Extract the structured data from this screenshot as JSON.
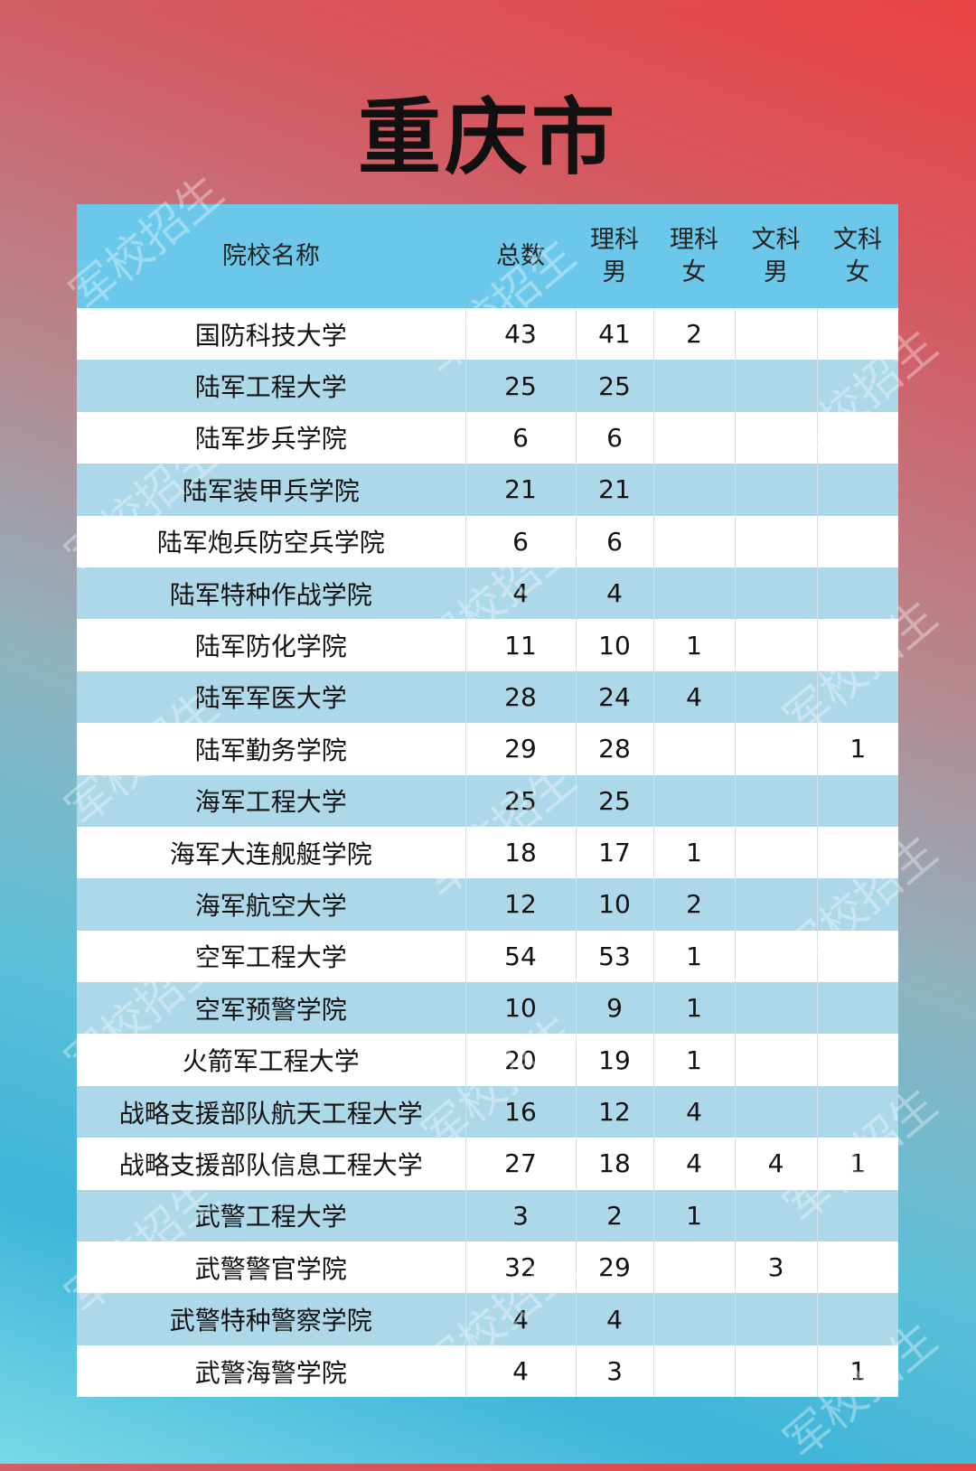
{
  "title": "重庆市",
  "watermark": "军校招生",
  "headers": [
    "院校名称",
    "总数",
    "理科男",
    "理科女",
    "文科男",
    "文科女"
  ],
  "rows": [
    [
      "国防科技大学",
      "43",
      "41",
      "2",
      "",
      ""
    ],
    [
      "陆军工程大学",
      "25",
      "25",
      "",
      "",
      ""
    ],
    [
      "陆军步兵学院",
      "6",
      "6",
      "",
      "",
      ""
    ],
    [
      "陆军装甲兵学院",
      "21",
      "21",
      "",
      "",
      ""
    ],
    [
      "陆军炮兵防空兵学院",
      "6",
      "6",
      "",
      "",
      ""
    ],
    [
      "陆军特种作战学院",
      "4",
      "4",
      "",
      "",
      ""
    ],
    [
      "陆军防化学院",
      "11",
      "10",
      "1",
      "",
      ""
    ],
    [
      "陆军军医大学",
      "28",
      "24",
      "4",
      "",
      ""
    ],
    [
      "陆军勤务学院",
      "29",
      "28",
      "",
      "",
      "1"
    ],
    [
      "海军工程大学",
      "25",
      "25",
      "",
      "",
      ""
    ],
    [
      "海军大连舰艇学院",
      "18",
      "17",
      "1",
      "",
      ""
    ],
    [
      "海军航空大学",
      "12",
      "10",
      "2",
      "",
      ""
    ],
    [
      "空军工程大学",
      "54",
      "53",
      "1",
      "",
      ""
    ],
    [
      "空军预警学院",
      "10",
      "9",
      "1",
      "",
      ""
    ],
    [
      "火箭军工程大学",
      "20",
      "19",
      "1",
      "",
      ""
    ],
    [
      "战略支援部队航天工程大学",
      "16",
      "12",
      "4",
      "",
      ""
    ],
    [
      "战略支援部队信息工程大学",
      "27",
      "18",
      "4",
      "4",
      "1"
    ],
    [
      "武警工程大学",
      "3",
      "2",
      "1",
      "",
      ""
    ],
    [
      "武警警官学院",
      "32",
      "29",
      "",
      "3",
      ""
    ],
    [
      "武警特种警察学院",
      "4",
      "4",
      "",
      "",
      ""
    ],
    [
      "武警海警学院",
      "4",
      "3",
      "",
      "",
      "1"
    ]
  ],
  "colors": {
    "header": "#6cc8eb",
    "row_alt": "#acd8ea",
    "row": "#ffffff"
  }
}
